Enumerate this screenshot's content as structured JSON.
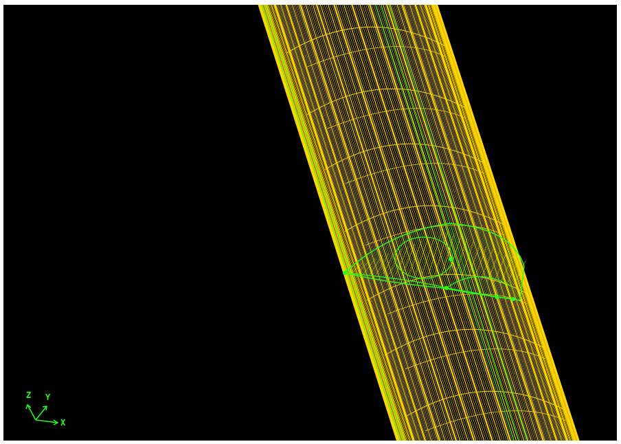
{
  "viewport": {
    "background": "#000000",
    "mesh_color": "#FFD700",
    "highlight_color": "#22FF22"
  },
  "axis_triad": {
    "z_label": "Z",
    "y_label": "Y",
    "x_label": "X"
  }
}
